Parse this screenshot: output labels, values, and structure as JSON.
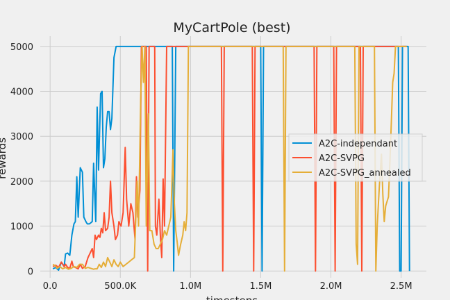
{
  "chart_data": {
    "type": "line",
    "title": "MyCartPole (best)",
    "xlabel": "timesteps",
    "ylabel": "rewards",
    "xlim": [
      -70000,
      2680000
    ],
    "ylim": [
      -150,
      5230
    ],
    "xticks": [
      {
        "value": 0,
        "label": "0.0"
      },
      {
        "value": 500000,
        "label": "500.0K"
      },
      {
        "value": 1000000,
        "label": "1.0M"
      },
      {
        "value": 1500000,
        "label": "1.5M"
      },
      {
        "value": 2000000,
        "label": "2.0M"
      },
      {
        "value": 2500000,
        "label": "2.5M"
      }
    ],
    "yticks": [
      {
        "value": 0,
        "label": "0"
      },
      {
        "value": 1000,
        "label": "1000"
      },
      {
        "value": 2000,
        "label": "2000"
      },
      {
        "value": 3000,
        "label": "3000"
      },
      {
        "value": 4000,
        "label": "4000"
      },
      {
        "value": 5000,
        "label": "5000"
      }
    ],
    "grid": true,
    "legend": "center-right",
    "series": [
      {
        "name": "A2C-independant",
        "color": "#008fd5",
        "points": [
          [
            20000,
            50
          ],
          [
            40000,
            80
          ],
          [
            60000,
            20
          ],
          [
            80000,
            200
          ],
          [
            100000,
            100
          ],
          [
            110000,
            380
          ],
          [
            125000,
            400
          ],
          [
            140000,
            350
          ],
          [
            155000,
            800
          ],
          [
            170000,
            1050
          ],
          [
            180000,
            1100
          ],
          [
            190000,
            2100
          ],
          [
            200000,
            1200
          ],
          [
            215000,
            2300
          ],
          [
            230000,
            2200
          ],
          [
            240000,
            1200
          ],
          [
            255000,
            1100
          ],
          [
            265000,
            1050
          ],
          [
            280000,
            1050
          ],
          [
            300000,
            1100
          ],
          [
            310000,
            2400
          ],
          [
            325000,
            1100
          ],
          [
            335000,
            3650
          ],
          [
            345000,
            2250
          ],
          [
            360000,
            3950
          ],
          [
            370000,
            4000
          ],
          [
            380000,
            2300
          ],
          [
            390000,
            2500
          ],
          [
            400000,
            3200
          ],
          [
            410000,
            3550
          ],
          [
            420000,
            3550
          ],
          [
            430000,
            3150
          ],
          [
            440000,
            3400
          ],
          [
            455000,
            4750
          ],
          [
            470000,
            5000
          ],
          [
            500000,
            5000
          ],
          [
            850000,
            5000
          ],
          [
            870000,
            5000
          ],
          [
            880000,
            0
          ],
          [
            895000,
            5000
          ],
          [
            1500000,
            5000
          ],
          [
            1510000,
            0
          ],
          [
            1520000,
            5000
          ],
          [
            2480000,
            5000
          ],
          [
            2490000,
            0
          ],
          [
            2500000,
            0
          ],
          [
            2510000,
            5000
          ],
          [
            2550000,
            5000
          ],
          [
            2560000,
            0
          ]
        ]
      },
      {
        "name": "A2C-SVPG",
        "color": "#fc4f30",
        "points": [
          [
            20000,
            100
          ],
          [
            40000,
            130
          ],
          [
            60000,
            80
          ],
          [
            80000,
            200
          ],
          [
            100000,
            100
          ],
          [
            110000,
            150
          ],
          [
            125000,
            80
          ],
          [
            140000,
            60
          ],
          [
            155000,
            220
          ],
          [
            165000,
            100
          ],
          [
            180000,
            80
          ],
          [
            200000,
            50
          ],
          [
            215000,
            150
          ],
          [
            230000,
            60
          ],
          [
            250000,
            100
          ],
          [
            270000,
            300
          ],
          [
            285000,
            400
          ],
          [
            300000,
            500
          ],
          [
            310000,
            300
          ],
          [
            320000,
            800
          ],
          [
            330000,
            700
          ],
          [
            345000,
            800
          ],
          [
            355000,
            750
          ],
          [
            365000,
            950
          ],
          [
            375000,
            850
          ],
          [
            385000,
            1300
          ],
          [
            395000,
            900
          ],
          [
            410000,
            950
          ],
          [
            420000,
            1200
          ],
          [
            430000,
            2000
          ],
          [
            440000,
            1300
          ],
          [
            455000,
            1000
          ],
          [
            465000,
            700
          ],
          [
            480000,
            800
          ],
          [
            490000,
            1100
          ],
          [
            505000,
            1000
          ],
          [
            520000,
            1300
          ],
          [
            535000,
            2750
          ],
          [
            545000,
            1600
          ],
          [
            560000,
            1000
          ],
          [
            575000,
            1500
          ],
          [
            590000,
            1300
          ],
          [
            605000,
            700
          ],
          [
            615000,
            2100
          ],
          [
            625000,
            1200
          ],
          [
            640000,
            1800
          ],
          [
            650000,
            5000
          ],
          [
            685000,
            5000
          ],
          [
            695000,
            0
          ],
          [
            705000,
            5000
          ],
          [
            745000,
            5000
          ],
          [
            750000,
            1000
          ],
          [
            760000,
            800
          ],
          [
            775000,
            1600
          ],
          [
            785000,
            800
          ],
          [
            795000,
            300
          ],
          [
            805000,
            2050
          ],
          [
            815000,
            1000
          ],
          [
            830000,
            5000
          ],
          [
            1220000,
            5000
          ],
          [
            1230000,
            0
          ],
          [
            1240000,
            5000
          ],
          [
            1440000,
            5000
          ],
          [
            1450000,
            0
          ],
          [
            1460000,
            5000
          ],
          [
            1880000,
            5000
          ],
          [
            1890000,
            0
          ],
          [
            1900000,
            5000
          ],
          [
            2020000,
            5000
          ],
          [
            2030000,
            0
          ],
          [
            2040000,
            5000
          ],
          [
            2210000,
            5000
          ],
          [
            2220000,
            0
          ],
          [
            2230000,
            5000
          ],
          [
            2490000,
            5000
          ],
          [
            2500000,
            5000
          ],
          [
            2540000,
            5000
          ]
        ]
      },
      {
        "name": "A2C-SVPG_annealed",
        "color": "#e5ae38",
        "points": [
          [
            20000,
            150
          ],
          [
            35000,
            120
          ],
          [
            50000,
            60
          ],
          [
            70000,
            100
          ],
          [
            90000,
            50
          ],
          [
            110000,
            80
          ],
          [
            130000,
            40
          ],
          [
            150000,
            60
          ],
          [
            170000,
            100
          ],
          [
            190000,
            80
          ],
          [
            210000,
            150
          ],
          [
            230000,
            150
          ],
          [
            250000,
            60
          ],
          [
            270000,
            80
          ],
          [
            290000,
            60
          ],
          [
            310000,
            40
          ],
          [
            320000,
            50
          ],
          [
            335000,
            50
          ],
          [
            350000,
            150
          ],
          [
            365000,
            80
          ],
          [
            380000,
            200
          ],
          [
            395000,
            100
          ],
          [
            410000,
            300
          ],
          [
            425000,
            200
          ],
          [
            440000,
            100
          ],
          [
            455000,
            250
          ],
          [
            470000,
            150
          ],
          [
            485000,
            100
          ],
          [
            500000,
            200
          ],
          [
            520000,
            100
          ],
          [
            540000,
            150
          ],
          [
            560000,
            200
          ],
          [
            580000,
            250
          ],
          [
            600000,
            300
          ],
          [
            620000,
            2000
          ],
          [
            630000,
            1000
          ],
          [
            645000,
            3800
          ],
          [
            655000,
            5000
          ],
          [
            665000,
            4200
          ],
          [
            675000,
            5000
          ],
          [
            685000,
            1000
          ],
          [
            700000,
            3500
          ],
          [
            710000,
            900
          ],
          [
            725000,
            900
          ],
          [
            740000,
            600
          ],
          [
            755000,
            500
          ],
          [
            770000,
            500
          ],
          [
            785000,
            600
          ],
          [
            800000,
            700
          ],
          [
            815000,
            900
          ],
          [
            830000,
            800
          ],
          [
            845000,
            1000
          ],
          [
            860000,
            1200
          ],
          [
            875000,
            2700
          ],
          [
            885000,
            1500
          ],
          [
            895000,
            900
          ],
          [
            905000,
            650
          ],
          [
            915000,
            350
          ],
          [
            930000,
            600
          ],
          [
            945000,
            800
          ],
          [
            955000,
            1100
          ],
          [
            965000,
            900
          ],
          [
            975000,
            1300
          ],
          [
            985000,
            5000
          ],
          [
            1660000,
            5000
          ],
          [
            1670000,
            0
          ],
          [
            1680000,
            5000
          ],
          [
            2170000,
            5000
          ],
          [
            2180000,
            600
          ],
          [
            2190000,
            150
          ],
          [
            2200000,
            5000
          ],
          [
            2310000,
            5000
          ],
          [
            2320000,
            0
          ],
          [
            2330000,
            1000
          ],
          [
            2345000,
            1900
          ],
          [
            2360000,
            2600
          ],
          [
            2370000,
            1700
          ],
          [
            2380000,
            1100
          ],
          [
            2390000,
            1450
          ],
          [
            2400000,
            1550
          ],
          [
            2410000,
            1650
          ],
          [
            2420000,
            2400
          ],
          [
            2430000,
            3300
          ],
          [
            2440000,
            4200
          ],
          [
            2450000,
            4400
          ],
          [
            2460000,
            5000
          ],
          [
            2540000,
            5000
          ]
        ]
      }
    ]
  }
}
